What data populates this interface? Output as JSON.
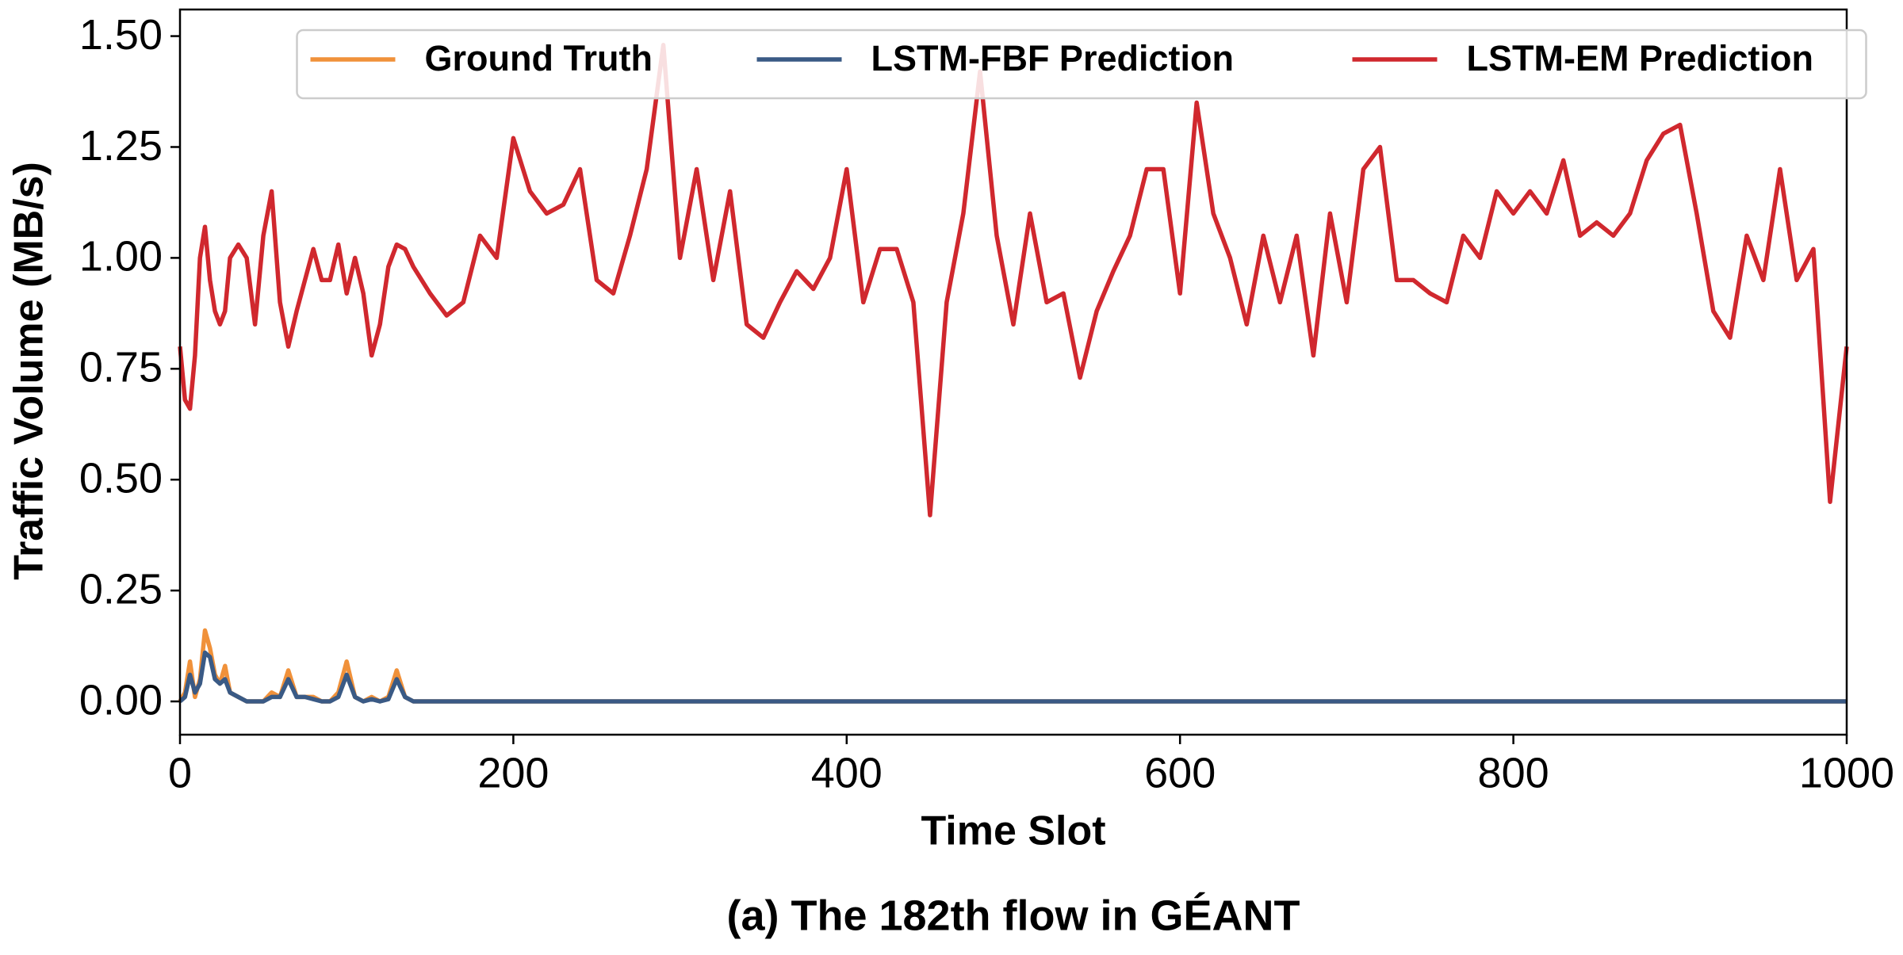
{
  "chart_data": {
    "type": "line",
    "caption": "(a) The 182th flow in GÉANT",
    "xlabel": "Time Slot",
    "ylabel": "Traffic Volume (MB/s)",
    "legend": "upper center",
    "grid": false,
    "xlim": [
      0,
      1000
    ],
    "xticks": [
      0,
      200,
      400,
      600,
      800,
      1000
    ],
    "ylim": [
      -0.075,
      1.56
    ],
    "yticks": [
      {
        "value": 0,
        "label": "0.00"
      },
      {
        "value": 0.25,
        "label": "0.25"
      },
      {
        "value": 0.5,
        "label": "0.50"
      },
      {
        "value": 0.75,
        "label": "0.75"
      },
      {
        "value": 1,
        "label": "1.00"
      },
      {
        "value": 1.25,
        "label": "1.25"
      },
      {
        "value": 1.5,
        "label": "1.50"
      }
    ],
    "x": [
      0,
      3,
      6,
      9,
      12,
      15,
      18,
      21,
      24,
      27,
      30,
      35,
      40,
      45,
      50,
      55,
      60,
      65,
      70,
      75,
      80,
      85,
      90,
      95,
      100,
      105,
      110,
      115,
      120,
      125,
      130,
      135,
      140,
      150,
      160,
      170,
      180,
      190,
      200,
      210,
      220,
      230,
      240,
      250,
      260,
      270,
      280,
      290,
      300,
      310,
      320,
      330,
      340,
      350,
      360,
      370,
      380,
      390,
      400,
      410,
      420,
      430,
      440,
      450,
      460,
      470,
      480,
      490,
      500,
      510,
      520,
      530,
      540,
      550,
      560,
      570,
      580,
      590,
      600,
      610,
      620,
      630,
      640,
      650,
      660,
      670,
      680,
      690,
      700,
      710,
      720,
      730,
      740,
      750,
      760,
      770,
      780,
      790,
      800,
      810,
      820,
      830,
      840,
      850,
      860,
      870,
      880,
      890,
      900,
      910,
      920,
      930,
      940,
      950,
      960,
      970,
      980,
      990,
      1000
    ],
    "series": [
      {
        "name": "Ground Truth",
        "color": "#f0913a",
        "values": [
          0,
          0.02,
          0.09,
          0.01,
          0.05,
          0.16,
          0.12,
          0.06,
          0.04,
          0.08,
          0.02,
          0.01,
          0,
          0,
          0,
          0.02,
          0.01,
          0.07,
          0.01,
          0.01,
          0.01,
          0,
          0,
          0.02,
          0.09,
          0.01,
          0,
          0.01,
          0,
          0.01,
          0.07,
          0.01,
          0,
          0,
          0,
          0,
          0,
          0,
          0,
          0,
          0,
          0,
          0,
          0,
          0,
          0,
          0,
          0,
          0,
          0,
          0,
          0,
          0,
          0,
          0,
          0,
          0,
          0,
          0,
          0,
          0,
          0,
          0,
          0,
          0,
          0,
          0,
          0,
          0,
          0,
          0,
          0,
          0,
          0,
          0,
          0,
          0,
          0,
          0,
          0,
          0,
          0,
          0,
          0,
          0,
          0,
          0,
          0,
          0,
          0,
          0,
          0,
          0,
          0,
          0,
          0,
          0,
          0,
          0,
          0,
          0,
          0,
          0,
          0,
          0,
          0,
          0,
          0,
          0,
          0,
          0,
          0,
          0,
          0,
          0,
          0,
          0,
          0,
          0
        ]
      },
      {
        "name": "LSTM-FBF Prediction",
        "color": "#3a5a85",
        "values": [
          0,
          0.01,
          0.06,
          0.02,
          0.04,
          0.11,
          0.1,
          0.05,
          0.04,
          0.05,
          0.02,
          0.01,
          0,
          0,
          0,
          0.01,
          0.01,
          0.05,
          0.01,
          0.01,
          0.005,
          0,
          0,
          0.01,
          0.06,
          0.01,
          0,
          0.005,
          0,
          0.005,
          0.05,
          0.01,
          0,
          0,
          0,
          0,
          0,
          0,
          0,
          0,
          0,
          0,
          0,
          0,
          0,
          0,
          0,
          0,
          0,
          0,
          0,
          0,
          0,
          0,
          0,
          0,
          0,
          0,
          0,
          0,
          0,
          0,
          0,
          0,
          0,
          0,
          0,
          0,
          0,
          0,
          0,
          0,
          0,
          0,
          0,
          0,
          0,
          0,
          0,
          0,
          0,
          0,
          0,
          0,
          0,
          0,
          0,
          0,
          0,
          0,
          0,
          0,
          0,
          0,
          0,
          0,
          0,
          0,
          0,
          0,
          0,
          0,
          0,
          0,
          0,
          0,
          0,
          0,
          0,
          0,
          0,
          0,
          0,
          0,
          0,
          0,
          0,
          0,
          0
        ]
      },
      {
        "name": "LSTM-EM Prediction",
        "color": "#d0282e",
        "values": [
          0.8,
          0.68,
          0.66,
          0.78,
          1.0,
          1.07,
          0.95,
          0.88,
          0.85,
          0.88,
          1.0,
          1.03,
          1.0,
          0.85,
          1.05,
          1.15,
          0.9,
          0.8,
          0.88,
          0.95,
          1.02,
          0.95,
          0.95,
          1.03,
          0.92,
          1.0,
          0.92,
          0.78,
          0.85,
          0.98,
          1.03,
          1.02,
          0.98,
          0.92,
          0.87,
          0.9,
          1.05,
          1.0,
          1.27,
          1.15,
          1.1,
          1.12,
          1.2,
          0.95,
          0.92,
          1.05,
          1.2,
          1.48,
          1.0,
          1.2,
          0.95,
          1.15,
          0.85,
          0.82,
          0.9,
          0.97,
          0.93,
          1.0,
          1.2,
          0.9,
          1.02,
          1.02,
          0.9,
          0.42,
          0.9,
          1.1,
          1.42,
          1.05,
          0.85,
          1.1,
          0.9,
          0.92,
          0.73,
          0.88,
          0.97,
          1.05,
          1.2,
          1.2,
          0.92,
          1.35,
          1.1,
          1.0,
          0.85,
          1.05,
          0.9,
          1.05,
          0.78,
          1.1,
          0.9,
          1.2,
          1.25,
          0.95,
          0.95,
          0.92,
          0.9,
          1.05,
          1.0,
          1.15,
          1.1,
          1.15,
          1.1,
          1.22,
          1.05,
          1.08,
          1.05,
          1.1,
          1.22,
          1.28,
          1.3,
          1.1,
          0.88,
          0.82,
          1.05,
          0.95,
          1.2,
          0.95,
          1.02,
          0.45,
          0.8
        ]
      }
    ]
  }
}
